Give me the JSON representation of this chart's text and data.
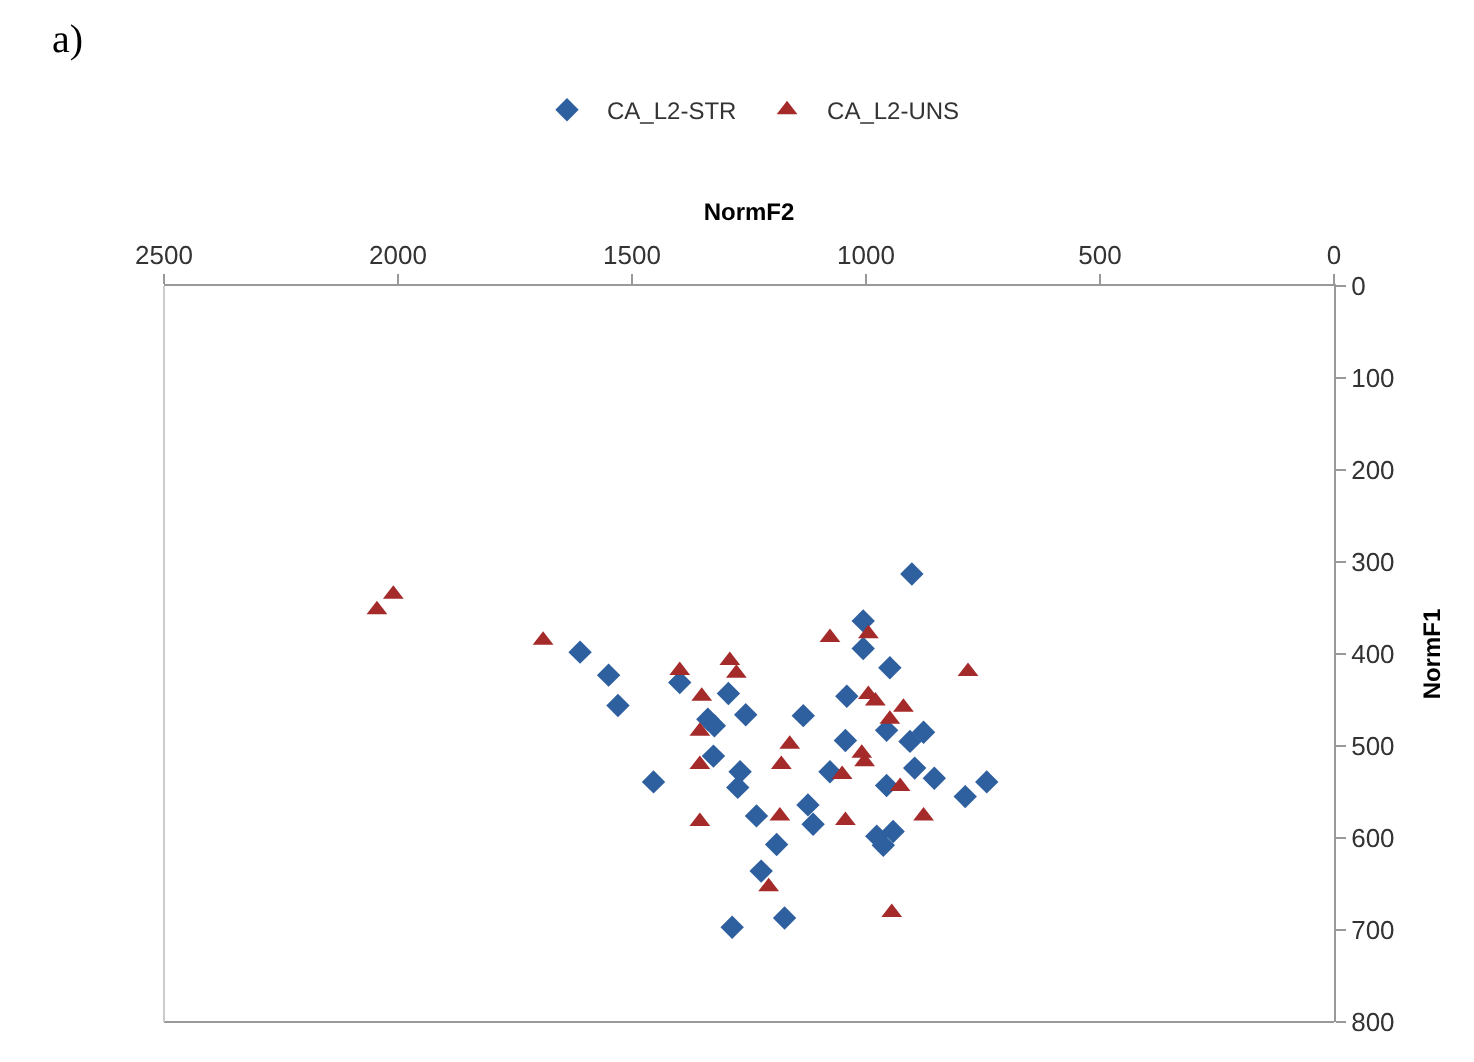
{
  "chart_data": {
    "type": "scatter",
    "xlabel": "NormF2",
    "ylabel": "NormF1",
    "annotations": [
      "a)"
    ],
    "xlim": [
      2500,
      0
    ],
    "xticks": [
      2500,
      2000,
      1500,
      1000,
      500,
      0
    ],
    "ylim": [
      800,
      0
    ],
    "yticks": [
      0,
      100,
      200,
      300,
      400,
      500,
      600,
      700,
      800
    ],
    "legend": "top",
    "series": [
      {
        "name": "CA_L2-STR",
        "color": "#2e5f9e",
        "marker": "diamond",
        "x": [
          1611,
          1550,
          1530,
          1454,
          1398,
          1294,
          1338,
          1324,
          1326,
          1257,
          1269,
          1274,
          1234,
          1191,
          1224,
          1286,
          1174,
          1134,
          1124,
          1113,
          1077,
          1044,
          1041,
          1006,
          1006,
          949,
          956,
          956,
          902,
          906,
          877,
          896,
          854,
          742,
          788,
          942,
          963,
          977
        ],
        "values": [
          398,
          423,
          456,
          539,
          431,
          443,
          471,
          478,
          511,
          466,
          528,
          545,
          576,
          607,
          636,
          697,
          687,
          467,
          564,
          585,
          528,
          494,
          446,
          364,
          394,
          415,
          483,
          543,
          313,
          495,
          485,
          524,
          535,
          539,
          555,
          593,
          608,
          598
        ]
      },
      {
        "name": "CA_L2-UNS",
        "color": "#a52a2a",
        "marker": "triangle",
        "x": [
          2045,
          2010,
          1690,
          1398,
          1291,
          1277,
          1351,
          1355,
          1355,
          1355,
          1163,
          1181,
          1184,
          1208,
          1077,
          1044,
          1051,
          1009,
          995,
          995,
          949,
          945,
          980,
          920,
          1003,
          927,
          877,
          782
        ],
        "values": [
          352,
          335,
          385,
          418,
          407,
          421,
          446,
          484,
          520,
          582,
          498,
          520,
          576,
          653,
          382,
          581,
          531,
          508,
          444,
          378,
          471,
          681,
          451,
          458,
          517,
          544,
          576,
          419
        ]
      }
    ]
  }
}
